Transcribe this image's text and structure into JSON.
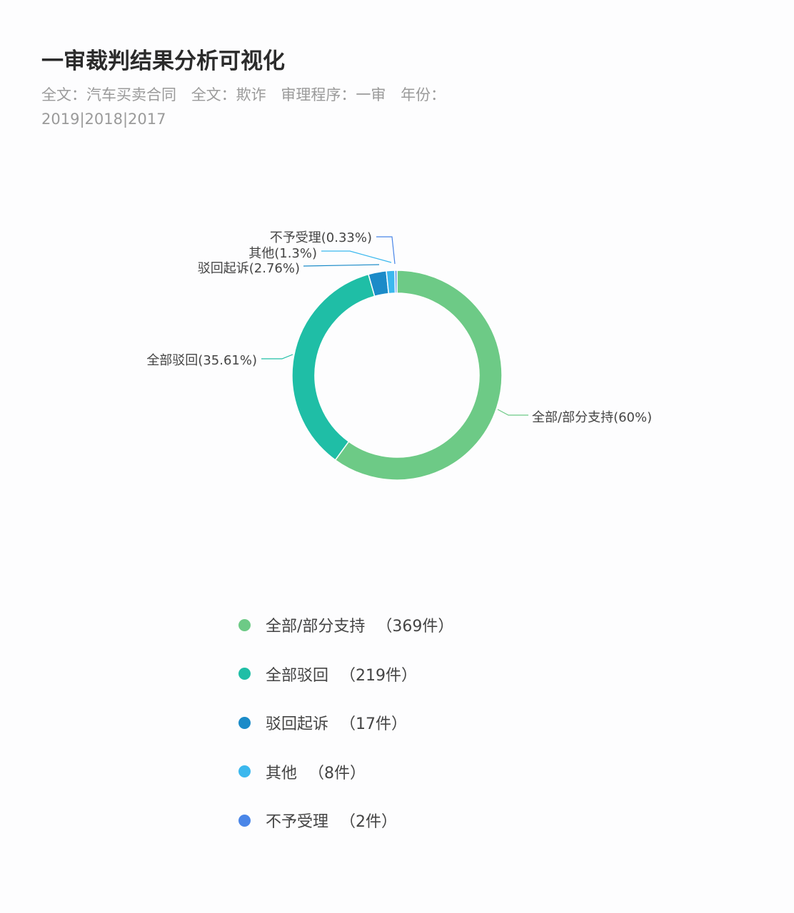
{
  "header": {
    "title": "一审裁判结果分析可视化",
    "filters": [
      "全文：汽车买卖合同",
      "全文：欺诈",
      "审理程序：一审",
      "年份：2019|2018|2017"
    ]
  },
  "chart_data": {
    "type": "pie",
    "variant": "donut",
    "categories": [
      "全部/部分支持",
      "全部驳回",
      "驳回起诉",
      "其他",
      "不予受理"
    ],
    "values": [
      369,
      219,
      17,
      8,
      2
    ],
    "percent_labels": [
      "全部/部分支持(60%)",
      "全部驳回(35.61%)",
      "驳回起诉(2.76%)",
      "其他(1.3%)",
      "不予受理(0.33%)"
    ],
    "colors": [
      "#6dca86",
      "#1fbea6",
      "#1b8bc8",
      "#3bb8ee",
      "#4a86e8"
    ],
    "legend": {
      "placement": "bottom",
      "items": [
        "全部/部分支持",
        "全部驳回",
        "驳回起诉",
        "其他",
        "不予受理"
      ],
      "counts": [
        "（369件）",
        "（219件）",
        "（17件）",
        "（8件）",
        "（2件）"
      ]
    }
  }
}
